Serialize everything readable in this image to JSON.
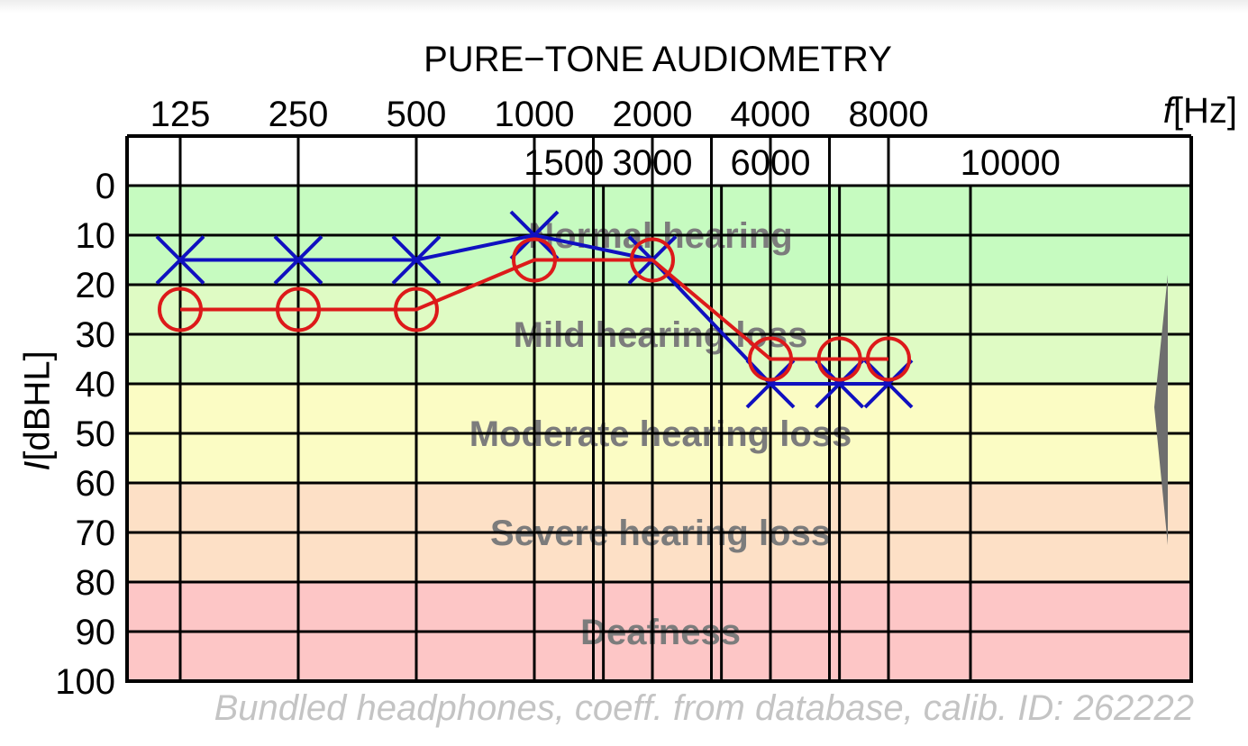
{
  "chart_data": {
    "type": "line",
    "title": "PURE−TONE AUDIOMETRY",
    "xlabel_symbol": "f",
    "xlabel_unit": "[Hz]",
    "ylabel_symbol": "I",
    "ylabel_unit": "[dBHL]",
    "x_ticks_main": [
      125,
      250,
      500,
      1000,
      2000,
      4000,
      8000
    ],
    "x_ticks_inter": [
      1500,
      3000,
      6000,
      10000
    ],
    "y_ticks": [
      0,
      10,
      20,
      30,
      40,
      50,
      60,
      70,
      80,
      90,
      100
    ],
    "ylim": [
      0,
      100
    ],
    "y_inverted": true,
    "grid": true,
    "zones": [
      {
        "label": "Normal hearing",
        "from": 0,
        "to": 20,
        "color": "#c6fbc0"
      },
      {
        "label": "Mild hearing loss",
        "from": 20,
        "to": 40,
        "color": "#dffbc4"
      },
      {
        "label": "Moderate hearing loss",
        "from": 40,
        "to": 60,
        "color": "#fbfcc4"
      },
      {
        "label": "Severe hearing loss",
        "from": 60,
        "to": 80,
        "color": "#fde0c6"
      },
      {
        "label": "Deafness",
        "from": 80,
        "to": 100,
        "color": "#fdc6c6"
      }
    ],
    "series": [
      {
        "marker": "x",
        "color": "#1010c0",
        "x": [
          125,
          250,
          500,
          1000,
          2000,
          4000,
          6000,
          8000
        ],
        "values": [
          15,
          15,
          15,
          10,
          15,
          40,
          40,
          40
        ]
      },
      {
        "marker": "o",
        "color": "#dd1a1a",
        "x": [
          125,
          250,
          500,
          1000,
          2000,
          4000,
          6000,
          8000
        ],
        "values": [
          25,
          25,
          25,
          15,
          15,
          35,
          35,
          35
        ]
      }
    ],
    "footnote": "Bundled headphones, coeff. from database, calib. ID: 262222"
  }
}
